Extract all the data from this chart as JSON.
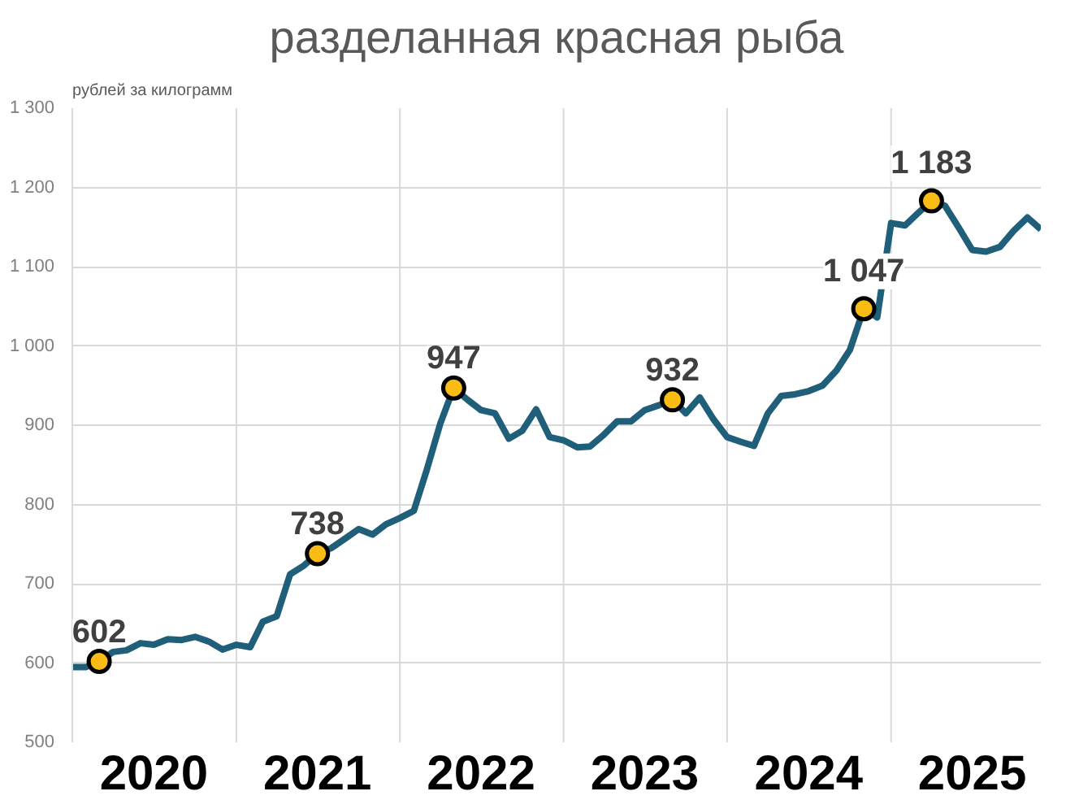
{
  "chart_data": {
    "type": "line",
    "title": "разделанная красная рыба",
    "ylabel": "рублей за килограмм",
    "x": [
      "2020-01",
      "2020-02",
      "2020-03",
      "2020-04",
      "2020-05",
      "2020-06",
      "2020-07",
      "2020-08",
      "2020-09",
      "2020-10",
      "2020-11",
      "2020-12",
      "2021-01",
      "2021-02",
      "2021-03",
      "2021-04",
      "2021-05",
      "2021-06",
      "2021-07",
      "2021-08",
      "2021-09",
      "2021-10",
      "2021-11",
      "2021-12",
      "2022-01",
      "2022-02",
      "2022-03",
      "2022-04",
      "2022-05",
      "2022-06",
      "2022-07",
      "2022-08",
      "2022-09",
      "2022-10",
      "2022-11",
      "2022-12",
      "2023-01",
      "2023-02",
      "2023-03",
      "2023-04",
      "2023-05",
      "2023-06",
      "2023-07",
      "2023-08",
      "2023-09",
      "2023-10",
      "2023-11",
      "2023-12",
      "2024-01",
      "2024-02",
      "2024-03",
      "2024-04",
      "2024-05",
      "2024-06",
      "2024-07",
      "2024-08",
      "2024-09",
      "2024-10",
      "2024-11",
      "2024-12",
      "2025-01",
      "2025-02",
      "2025-03",
      "2025-04",
      "2025-05",
      "2025-06",
      "2025-07",
      "2025-08",
      "2025-09",
      "2025-10",
      "2025-11",
      "2025-12"
    ],
    "series": [
      {
        "color": "#1f5f7a",
        "values": [
          595,
          595,
          602,
          614,
          616,
          625,
          623,
          630,
          629,
          633,
          627,
          617,
          623,
          620,
          652,
          659,
          712,
          723,
          738,
          745,
          757,
          769,
          762,
          775,
          783,
          792,
          842,
          902,
          947,
          932,
          919,
          915,
          883,
          893,
          920,
          885,
          881,
          872,
          873,
          888,
          905,
          905,
          919,
          925,
          932,
          915,
          935,
          908,
          885,
          879,
          874,
          915,
          937,
          939,
          943,
          950,
          969,
          995,
          1047,
          1036,
          1155,
          1152,
          1167,
          1183,
          1177,
          1149,
          1121,
          1119,
          1125,
          1145,
          1162,
          1147
        ],
        "value_labels": [
          null,
          null,
          "602",
          null,
          null,
          null,
          null,
          null,
          null,
          null,
          null,
          null,
          null,
          null,
          null,
          null,
          null,
          null,
          "738",
          null,
          null,
          null,
          null,
          null,
          null,
          null,
          null,
          null,
          "947",
          null,
          null,
          null,
          null,
          null,
          null,
          null,
          null,
          null,
          null,
          null,
          null,
          null,
          null,
          null,
          "932",
          null,
          null,
          null,
          null,
          null,
          null,
          null,
          null,
          null,
          null,
          null,
          null,
          null,
          "1 047",
          null,
          null,
          null,
          null,
          "1 183",
          null,
          null,
          null,
          null,
          null,
          null,
          null,
          null
        ]
      },
      {
        "type": "scatter",
        "color": "#f9bc15",
        "x": [
          "2020-03",
          "2021-07",
          "2022-05",
          "2023-09",
          "2024-11",
          "2025-04"
        ],
        "values": [
          602,
          738,
          947,
          932,
          1047,
          1183
        ],
        "marker": "circle"
      }
    ],
    "xlim": [
      "2020-01",
      "2025-12"
    ],
    "xticks": [
      {
        "value": "2020-07",
        "label": "2020"
      },
      {
        "value": "2021-07",
        "label": "2021"
      },
      {
        "value": "2022-07",
        "label": "2022"
      },
      {
        "value": "2023-07",
        "label": "2023"
      },
      {
        "value": "2024-07",
        "label": "2024"
      },
      {
        "value": "2025-07",
        "label": "2025"
      }
    ],
    "ref_lines": [
      {
        "axis": "x",
        "value": "2021-01",
        "color": "#d9d9d9"
      },
      {
        "axis": "x",
        "value": "2022-01",
        "color": "#d9d9d9"
      },
      {
        "axis": "x",
        "value": "2023-01",
        "color": "#d9d9d9"
      },
      {
        "axis": "x",
        "value": "2024-01",
        "color": "#d9d9d9"
      },
      {
        "axis": "x",
        "value": "2025-01",
        "color": "#d9d9d9"
      }
    ],
    "ylim": [
      500,
      1300
    ],
    "yticks": [
      500,
      600,
      700,
      800,
      900,
      {
        "value": 1000,
        "label": "1 000"
      },
      {
        "value": 1100,
        "label": "1 100"
      },
      {
        "value": 1200,
        "label": "1 200"
      },
      {
        "value": 1300,
        "label": "1 300"
      }
    ],
    "line_style": "solid",
    "grid": "y"
  }
}
